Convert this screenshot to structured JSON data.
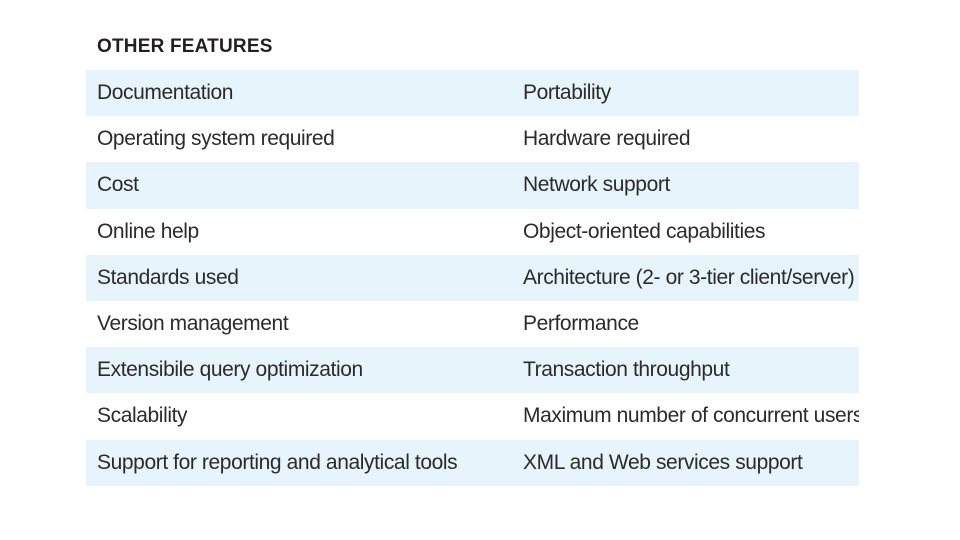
{
  "heading": "OTHER FEATURES",
  "rows": [
    {
      "left": "Documentation",
      "right": "Portability"
    },
    {
      "left": "Operating system required",
      "right": "Hardware required"
    },
    {
      "left": "Cost",
      "right": "Network support"
    },
    {
      "left": "Online help",
      "right": "Object-oriented capabilities"
    },
    {
      "left": "Standards used",
      "right": "Architecture (2- or 3-tier client/server)"
    },
    {
      "left": "Version management",
      "right": "Performance"
    },
    {
      "left": "Extensibile query optimization",
      "right": "Transaction throughput"
    },
    {
      "left": "Scalability",
      "right": "Maximum number of concurrent users"
    },
    {
      "left": "Support for reporting and analytical tools",
      "right": "XML and Web services support"
    }
  ],
  "colors": {
    "shaded_row": "#e8f4fb",
    "text": "#2b2b2b",
    "heading": "#231f20"
  }
}
